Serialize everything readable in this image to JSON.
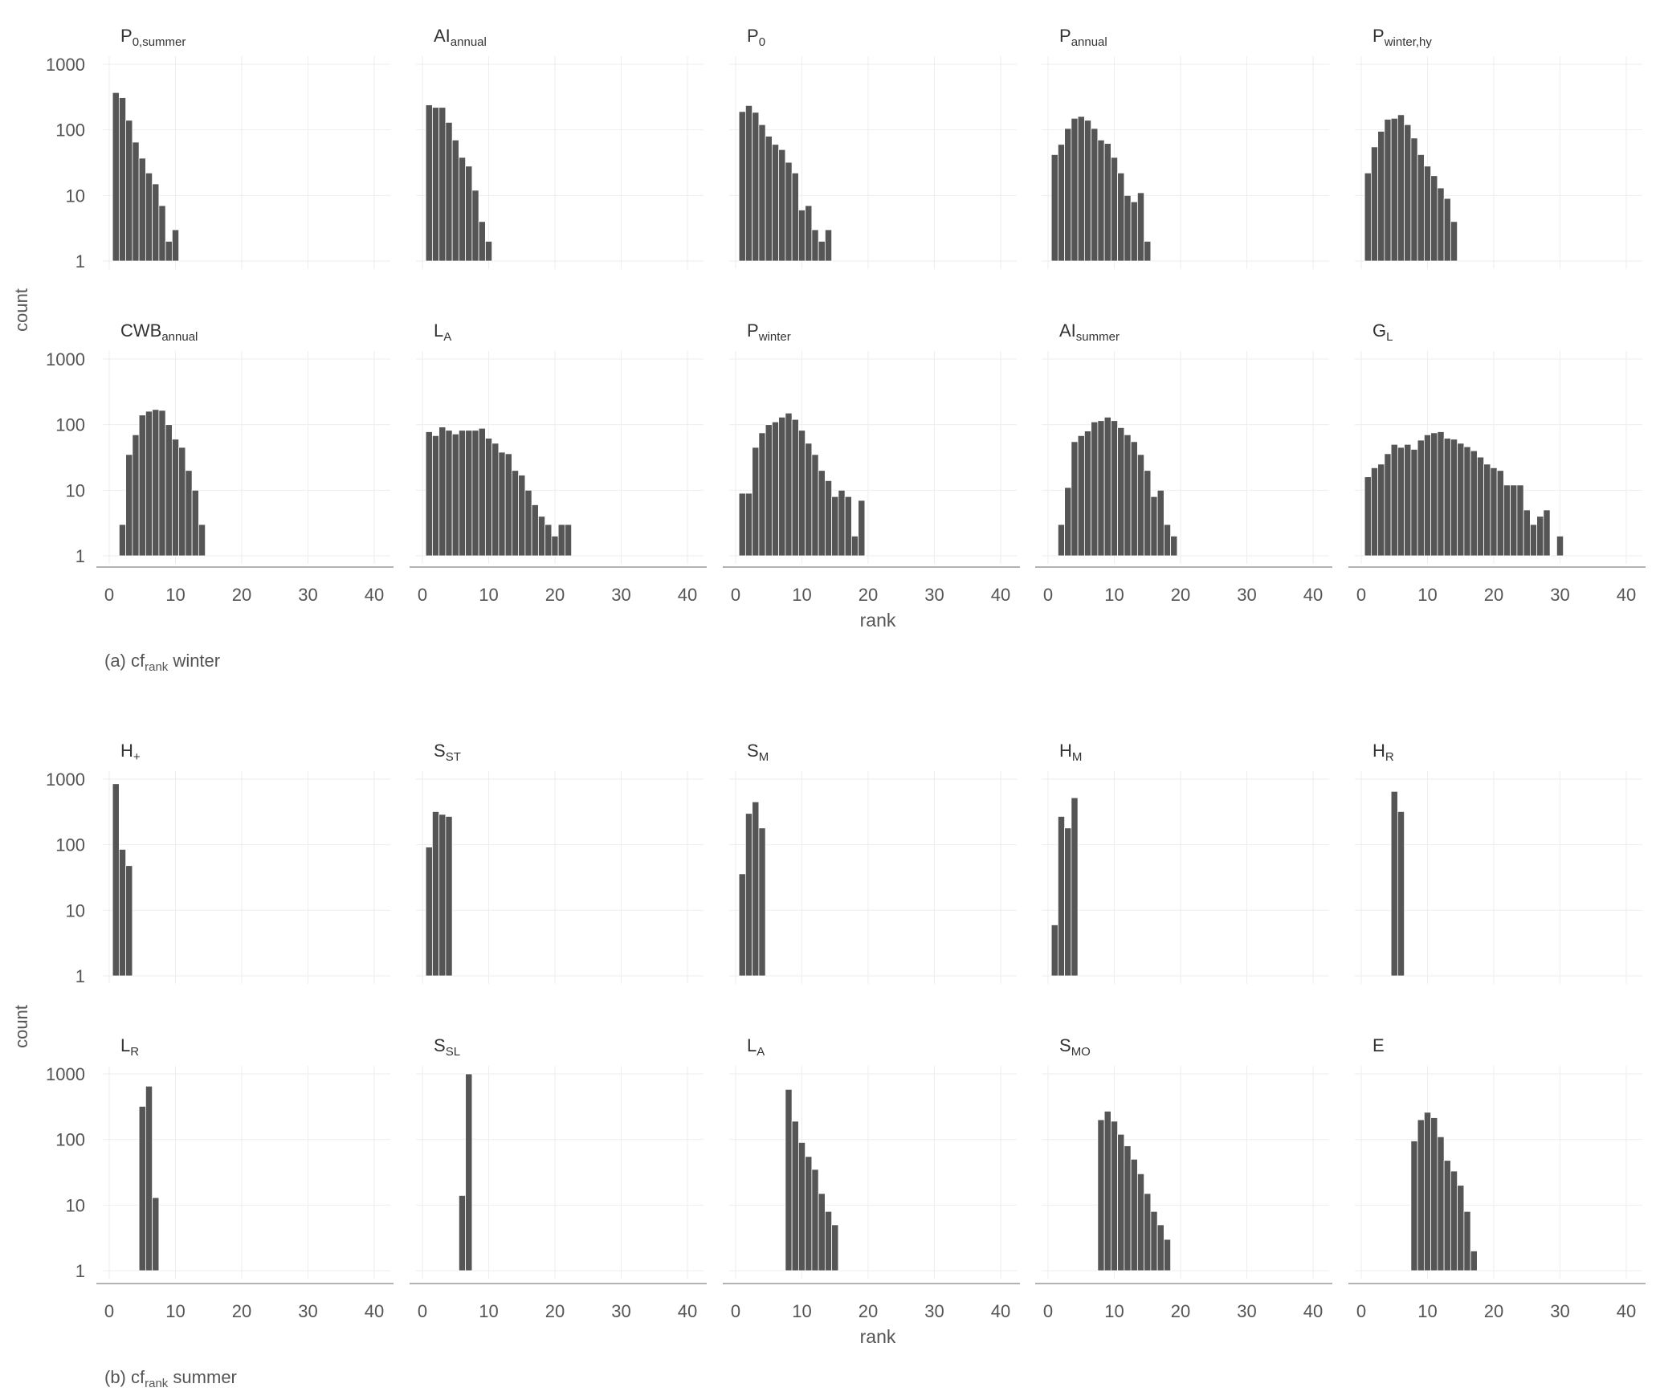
{
  "figure": {
    "ylabel": "count",
    "xlabel": "rank",
    "yticks": [
      "1",
      "10",
      "100",
      "1000"
    ],
    "xticks": [
      "0",
      "10",
      "20",
      "30",
      "40"
    ]
  },
  "colors": {
    "bar": "#555555",
    "grid": "#eeeeee",
    "axis": "#999999",
    "text": "#555555"
  },
  "chart_data": [
    {
      "type": "bar",
      "caption": {
        "prefix": "(a) cf",
        "sub": "rank",
        "suffix": " winter"
      },
      "xlabel": "rank",
      "ylabel": "count",
      "yscale": "log",
      "ylim": [
        1,
        1000
      ],
      "xlim": [
        -2,
        42
      ],
      "panels": [
        {
          "title": "P",
          "title_sub": "0,summer",
          "x": [
            1,
            2,
            3,
            4,
            5,
            6,
            7,
            8,
            9,
            10
          ],
          "values": [
            370,
            310,
            140,
            65,
            37,
            22,
            15,
            7,
            2,
            3
          ]
        },
        {
          "title": "AI",
          "title_sub": "annual",
          "x": [
            1,
            2,
            3,
            4,
            5,
            6,
            7,
            8,
            9,
            10
          ],
          "values": [
            240,
            220,
            220,
            130,
            70,
            38,
            28,
            12,
            4,
            2
          ]
        },
        {
          "title": "P",
          "title_sub": "0",
          "x": [
            1,
            2,
            3,
            4,
            5,
            6,
            7,
            8,
            9,
            10,
            11,
            12,
            13,
            14
          ],
          "values": [
            190,
            235,
            185,
            120,
            80,
            60,
            50,
            32,
            22,
            6,
            7,
            3,
            2,
            3
          ]
        },
        {
          "title": "P",
          "title_sub": "annual",
          "x": [
            1,
            2,
            3,
            4,
            5,
            6,
            7,
            8,
            9,
            10,
            11,
            12,
            13,
            14,
            15
          ],
          "values": [
            42,
            60,
            105,
            150,
            160,
            140,
            105,
            70,
            62,
            38,
            22,
            10,
            8,
            11,
            2
          ]
        },
        {
          "title": "P",
          "title_sub": "winter,hy",
          "x": [
            1,
            2,
            3,
            4,
            5,
            6,
            7,
            8,
            9,
            10,
            11,
            12,
            13,
            14
          ],
          "values": [
            22,
            55,
            95,
            145,
            150,
            170,
            120,
            75,
            42,
            28,
            20,
            13,
            9,
            4
          ]
        },
        {
          "title": "CWB",
          "title_sub": "annual",
          "x": [
            2,
            3,
            4,
            5,
            6,
            7,
            8,
            9,
            10,
            11,
            12,
            13,
            14
          ],
          "values": [
            3,
            35,
            70,
            140,
            160,
            170,
            165,
            100,
            60,
            45,
            20,
            10,
            3
          ]
        },
        {
          "title": "L",
          "title_sub": "A",
          "x": [
            1,
            2,
            3,
            4,
            5,
            6,
            7,
            8,
            9,
            10,
            11,
            12,
            13,
            14,
            15,
            16,
            17,
            18,
            19,
            20,
            21,
            22
          ],
          "values": [
            78,
            68,
            92,
            82,
            72,
            82,
            82,
            82,
            88,
            62,
            52,
            38,
            36,
            20,
            17,
            10,
            6,
            4,
            3,
            2,
            3,
            3
          ]
        },
        {
          "title": "P",
          "title_sub": "winter",
          "x": [
            1,
            2,
            3,
            4,
            5,
            6,
            7,
            8,
            9,
            10,
            11,
            12,
            13,
            14,
            15,
            16,
            17,
            18,
            19
          ],
          "values": [
            9,
            9,
            45,
            75,
            100,
            110,
            130,
            150,
            120,
            82,
            52,
            35,
            20,
            14,
            8,
            10,
            8,
            2,
            7
          ]
        },
        {
          "title": "AI",
          "title_sub": "summer",
          "x": [
            2,
            3,
            4,
            5,
            6,
            7,
            8,
            9,
            10,
            11,
            12,
            13,
            14,
            15,
            16,
            17,
            18,
            19
          ],
          "values": [
            3,
            11,
            55,
            68,
            80,
            110,
            115,
            130,
            115,
            90,
            70,
            55,
            35,
            20,
            8,
            10,
            3,
            2
          ]
        },
        {
          "title": "G",
          "title_sub": "L",
          "x": [
            1,
            2,
            3,
            4,
            5,
            6,
            7,
            8,
            9,
            10,
            11,
            12,
            13,
            14,
            15,
            16,
            17,
            18,
            19,
            20,
            21,
            22,
            23,
            24,
            25,
            26,
            27,
            28,
            30
          ],
          "values": [
            16,
            22,
            25,
            36,
            50,
            45,
            50,
            42,
            58,
            70,
            75,
            78,
            62,
            60,
            52,
            46,
            40,
            32,
            25,
            22,
            20,
            12,
            12,
            12,
            5,
            3,
            4,
            5,
            2
          ]
        }
      ]
    },
    {
      "type": "bar",
      "caption": {
        "prefix": "(b) cf",
        "sub": "rank",
        "suffix": " summer"
      },
      "xlabel": "rank",
      "ylabel": "count",
      "yscale": "log",
      "ylim": [
        1,
        1000
      ],
      "xlim": [
        -2,
        42
      ],
      "panels": [
        {
          "title": "H",
          "title_sub": "+",
          "x": [
            1,
            2,
            3
          ],
          "values": [
            850,
            85,
            48
          ]
        },
        {
          "title": "S",
          "title_sub": "ST",
          "x": [
            1,
            2,
            3,
            4
          ],
          "values": [
            92,
            320,
            290,
            270
          ]
        },
        {
          "title": "S",
          "title_sub": "M",
          "x": [
            1,
            2,
            3,
            4
          ],
          "values": [
            36,
            300,
            450,
            180
          ]
        },
        {
          "title": "H",
          "title_sub": "M",
          "x": [
            1,
            2,
            3,
            4
          ],
          "values": [
            6,
            270,
            180,
            520
          ]
        },
        {
          "title": "H",
          "title_sub": "R",
          "x": [
            5,
            6
          ],
          "values": [
            650,
            320
          ]
        },
        {
          "title": "L",
          "title_sub": "R",
          "x": [
            5,
            6,
            7
          ],
          "values": [
            320,
            650,
            13
          ]
        },
        {
          "title": "S",
          "title_sub": "SL",
          "x": [
            6,
            7
          ],
          "values": [
            14,
            1000
          ]
        },
        {
          "title": "L",
          "title_sub": "A",
          "x": [
            8,
            9,
            10,
            11,
            12,
            13,
            14,
            15
          ],
          "values": [
            580,
            190,
            90,
            55,
            35,
            15,
            8,
            5
          ]
        },
        {
          "title": "S",
          "title_sub": "MO",
          "x": [
            8,
            9,
            10,
            11,
            12,
            13,
            14,
            15,
            16,
            17,
            18
          ],
          "values": [
            200,
            270,
            190,
            120,
            80,
            50,
            30,
            15,
            8,
            5,
            3
          ]
        },
        {
          "title": "E",
          "title_sub": "",
          "x": [
            8,
            9,
            10,
            11,
            12,
            13,
            14,
            15,
            16,
            17
          ],
          "values": [
            95,
            200,
            260,
            215,
            110,
            48,
            33,
            20,
            8,
            2
          ]
        }
      ]
    }
  ]
}
